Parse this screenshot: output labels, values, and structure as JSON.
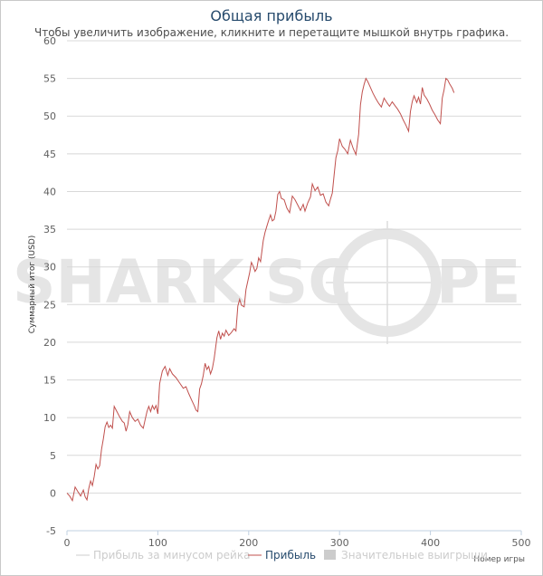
{
  "header": {
    "title": "Общая прибыль",
    "subtitle": "Чтобы увеличить изображение, кликните и перетащите мышкой внутрь графика."
  },
  "watermark": {
    "left": "SHARK SC",
    "right": "PE"
  },
  "chart_data": {
    "type": "line",
    "title": "Общая прибыль",
    "xlabel": "Номер игры",
    "ylabel": "Суммарный итог (USD)",
    "xlim": [
      0,
      500
    ],
    "ylim": [
      -5,
      60
    ],
    "x_ticks": [
      0,
      100,
      200,
      300,
      400,
      500
    ],
    "y_ticks": [
      -5,
      0,
      5,
      10,
      15,
      20,
      25,
      30,
      35,
      40,
      45,
      50,
      55,
      60
    ],
    "series": [
      {
        "name": "Прибыль",
        "color": "#c0504d",
        "points": [
          [
            0,
            0
          ],
          [
            3,
            -0.4
          ],
          [
            6,
            -1
          ],
          [
            9,
            0.8
          ],
          [
            12,
            0.2
          ],
          [
            15,
            -0.4
          ],
          [
            18,
            0.4
          ],
          [
            20,
            -0.5
          ],
          [
            22,
            -0.9
          ],
          [
            24,
            0.6
          ],
          [
            26,
            1.6
          ],
          [
            28,
            1
          ],
          [
            30,
            2.2
          ],
          [
            32,
            3.8
          ],
          [
            34,
            3.2
          ],
          [
            36,
            3.6
          ],
          [
            38,
            5.8
          ],
          [
            40,
            7.2
          ],
          [
            42,
            8.8
          ],
          [
            44,
            9.4
          ],
          [
            46,
            8.7
          ],
          [
            48,
            9
          ],
          [
            50,
            8.6
          ],
          [
            52,
            11.5
          ],
          [
            55,
            10.8
          ],
          [
            58,
            10.1
          ],
          [
            61,
            9.5
          ],
          [
            63,
            9.3
          ],
          [
            65,
            8.2
          ],
          [
            67,
            9.1
          ],
          [
            69,
            10.8
          ],
          [
            72,
            10
          ],
          [
            75,
            9.5
          ],
          [
            78,
            9.8
          ],
          [
            81,
            9
          ],
          [
            84,
            8.6
          ],
          [
            86,
            9.7
          ],
          [
            88,
            10.8
          ],
          [
            90,
            11.5
          ],
          [
            92,
            10.8
          ],
          [
            94,
            11.6
          ],
          [
            96,
            11.1
          ],
          [
            98,
            11.6
          ],
          [
            100,
            10.5
          ],
          [
            102,
            14.5
          ],
          [
            105,
            16.2
          ],
          [
            108,
            16.8
          ],
          [
            111,
            15.6
          ],
          [
            113,
            16.5
          ],
          [
            116,
            15.8
          ],
          [
            120,
            15.3
          ],
          [
            124,
            14.6
          ],
          [
            128,
            13.9
          ],
          [
            131,
            14.1
          ],
          [
            134,
            13.2
          ],
          [
            137,
            12.4
          ],
          [
            140,
            11.6
          ],
          [
            142,
            11
          ],
          [
            144,
            10.8
          ],
          [
            146,
            13.8
          ],
          [
            148,
            14.5
          ],
          [
            150,
            15.6
          ],
          [
            152,
            17.2
          ],
          [
            154,
            16.4
          ],
          [
            156,
            16.8
          ],
          [
            158,
            15.8
          ],
          [
            160,
            16.5
          ],
          [
            162,
            17.8
          ],
          [
            165,
            20.6
          ],
          [
            167,
            21.5
          ],
          [
            169,
            20.4
          ],
          [
            171,
            21.2
          ],
          [
            173,
            20.8
          ],
          [
            175,
            21.6
          ],
          [
            178,
            20.9
          ],
          [
            181,
            21.3
          ],
          [
            184,
            21.8
          ],
          [
            186,
            21.5
          ],
          [
            188,
            24.8
          ],
          [
            190,
            25.7
          ],
          [
            192,
            24.9
          ],
          [
            195,
            24.7
          ],
          [
            197,
            27
          ],
          [
            199,
            28.1
          ],
          [
            201,
            29.2
          ],
          [
            203,
            30.6
          ],
          [
            205,
            30.1
          ],
          [
            207,
            29.4
          ],
          [
            209,
            29.8
          ],
          [
            211,
            31.2
          ],
          [
            213,
            30.7
          ],
          [
            216,
            33.5
          ],
          [
            218,
            34.6
          ],
          [
            220,
            35.4
          ],
          [
            222,
            36.2
          ],
          [
            224,
            36.9
          ],
          [
            226,
            36.1
          ],
          [
            228,
            36.3
          ],
          [
            230,
            37.4
          ],
          [
            232,
            39.6
          ],
          [
            234,
            40
          ],
          [
            236,
            39.1
          ],
          [
            239,
            38.9
          ],
          [
            242,
            37.8
          ],
          [
            245,
            37.2
          ],
          [
            248,
            39.4
          ],
          [
            251,
            38.9
          ],
          [
            254,
            38.2
          ],
          [
            257,
            37.5
          ],
          [
            260,
            38.3
          ],
          [
            262,
            37.4
          ],
          [
            265,
            38.5
          ],
          [
            268,
            39.3
          ],
          [
            270,
            41
          ],
          [
            273,
            40.1
          ],
          [
            276,
            40.6
          ],
          [
            279,
            39.5
          ],
          [
            282,
            39.7
          ],
          [
            285,
            38.6
          ],
          [
            288,
            38.1
          ],
          [
            290,
            39
          ],
          [
            292,
            39.8
          ],
          [
            294,
            42.2
          ],
          [
            296,
            44.5
          ],
          [
            298,
            45.4
          ],
          [
            300,
            47
          ],
          [
            303,
            46
          ],
          [
            306,
            45.6
          ],
          [
            309,
            45
          ],
          [
            312,
            46.8
          ],
          [
            315,
            45.7
          ],
          [
            318,
            44.9
          ],
          [
            321,
            47.6
          ],
          [
            323,
            51.5
          ],
          [
            325,
            53.2
          ],
          [
            327,
            54.2
          ],
          [
            329,
            55
          ],
          [
            331,
            54.6
          ],
          [
            334,
            53.8
          ],
          [
            337,
            53
          ],
          [
            340,
            52.3
          ],
          [
            343,
            51.7
          ],
          [
            346,
            51.2
          ],
          [
            349,
            52.4
          ],
          [
            352,
            51.8
          ],
          [
            355,
            51.3
          ],
          [
            358,
            51.9
          ],
          [
            361,
            51.4
          ],
          [
            364,
            50.9
          ],
          [
            367,
            50.3
          ],
          [
            370,
            49.5
          ],
          [
            373,
            48.8
          ],
          [
            376,
            48
          ],
          [
            378,
            50.6
          ],
          [
            380,
            51.9
          ],
          [
            382,
            52.7
          ],
          [
            385,
            51.8
          ],
          [
            387,
            52.5
          ],
          [
            389,
            51.6
          ],
          [
            391,
            53.8
          ],
          [
            393,
            52.8
          ],
          [
            396,
            52.3
          ],
          [
            399,
            51.6
          ],
          [
            402,
            50.8
          ],
          [
            405,
            50.2
          ],
          [
            408,
            49.5
          ],
          [
            411,
            49
          ],
          [
            413,
            52.4
          ],
          [
            415,
            53.5
          ],
          [
            417,
            55
          ],
          [
            419,
            54.8
          ],
          [
            421,
            54.3
          ],
          [
            424,
            53.7
          ],
          [
            426,
            53.1
          ]
        ]
      },
      {
        "name": "Прибыль за минусом рейка",
        "color": "#cccccc",
        "points": []
      },
      {
        "name": "Значительные выигрыши",
        "color": "#cccccc",
        "points": []
      }
    ],
    "legend": {
      "position": "bottom",
      "items": [
        {
          "label": "Прибыль за минусом рейка",
          "color": "#cccccc",
          "marker": "line"
        },
        {
          "label": "Прибыль",
          "color": "#c0504d",
          "marker": "line"
        },
        {
          "label": "Значительные выигрыши",
          "color": "#cccccc",
          "marker": "box"
        }
      ]
    }
  }
}
